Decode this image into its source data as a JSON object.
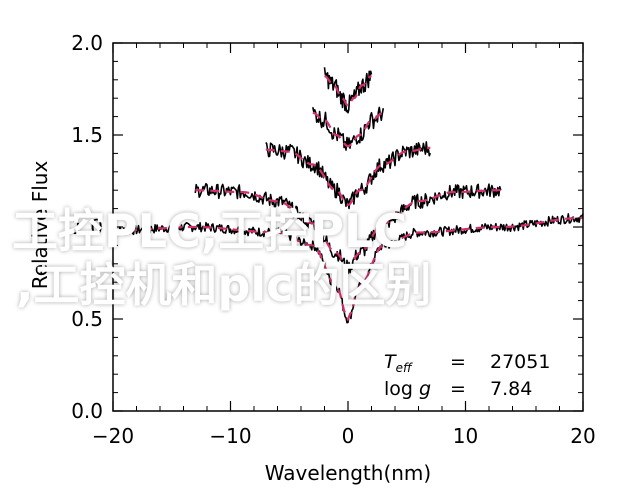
{
  "overlay": {
    "line1": "工控PLC,工控PLC",
    "line2": ",工控机和plc的区别"
  },
  "colors": {
    "data_line": "#000000",
    "fit_line": "#d4306f",
    "overlay_text": "#ffffff"
  },
  "chart_data": {
    "type": "line",
    "xlabel": "Wavelength(nm)",
    "ylabel": "Relative Flux",
    "xlim": [
      -20,
      20
    ],
    "ylim": [
      0.0,
      2.0
    ],
    "xticks": [
      -20,
      -10,
      0,
      10,
      20
    ],
    "xtick_labels": [
      "−20",
      "−10",
      "0",
      "10",
      "20"
    ],
    "yticks": [
      0.0,
      0.5,
      1.0,
      1.5,
      2.0
    ],
    "ytick_labels": [
      "0.0",
      "0.5",
      "1.0",
      "1.5",
      "2.0"
    ],
    "annotation": {
      "teff_label": "T",
      "teff_sub": "eff",
      "teff_eq": "=",
      "teff_value": "27051",
      "logg_label_a": "log",
      "logg_label_b": "g",
      "logg_eq": "=",
      "logg_value": "7.84"
    },
    "series": [
      {
        "offset": 0.0,
        "x": [
          -20,
          -13,
          -6,
          -3,
          -1,
          0,
          1,
          3,
          6,
          13,
          20
        ],
        "y": [
          0.98,
          1.0,
          0.97,
          0.9,
          0.68,
          0.5,
          0.68,
          0.9,
          0.97,
          1.0,
          1.05
        ]
      },
      {
        "offset": 0.2,
        "x": [
          -13,
          -9,
          -6,
          -3,
          -1,
          0,
          1,
          3,
          6,
          9,
          13
        ],
        "y": [
          1.2,
          1.19,
          1.14,
          1.02,
          0.86,
          0.78,
          0.86,
          1.02,
          1.14,
          1.19,
          1.2
        ]
      },
      {
        "offset": 0.4,
        "x": [
          -7,
          -5,
          -3,
          -1,
          0,
          1,
          3,
          5,
          7
        ],
        "y": [
          1.42,
          1.41,
          1.34,
          1.2,
          1.12,
          1.2,
          1.34,
          1.41,
          1.43
        ]
      },
      {
        "offset": 0.6,
        "x": [
          -3,
          -2,
          -1,
          0,
          1,
          2,
          3
        ],
        "y": [
          1.62,
          1.58,
          1.5,
          1.44,
          1.5,
          1.58,
          1.62
        ]
      },
      {
        "offset": 0.8,
        "x": [
          -2,
          -1.2,
          -0.5,
          0,
          0.5,
          1.2,
          2
        ],
        "y": [
          1.82,
          1.77,
          1.7,
          1.66,
          1.7,
          1.77,
          1.82
        ]
      }
    ]
  }
}
